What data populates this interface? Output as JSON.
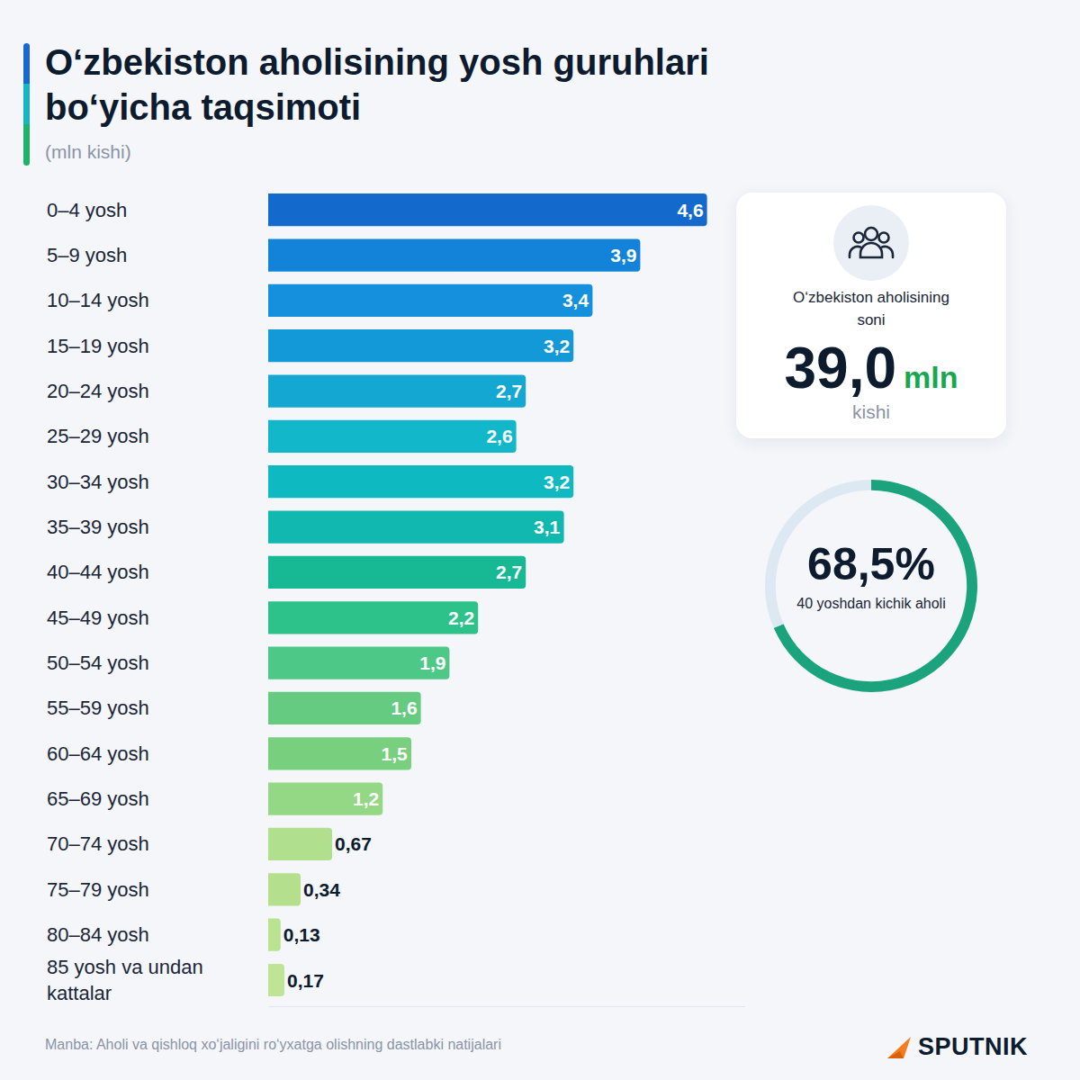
{
  "chart_data": {
    "type": "bar",
    "orientation": "horizontal",
    "title": "O‘zbekiston aholisining yosh guruhlari bo‘yicha taqsimoti",
    "subtitle": "(mln kishi)",
    "categories": [
      "0–4 yosh",
      "5–9 yosh",
      "10–14 yosh",
      "15–19 yosh",
      "20–24 yosh",
      "25–29 yosh",
      "30–34 yosh",
      "35–39 yosh",
      "40–44 yosh",
      "45–49 yosh",
      "50–54 yosh",
      "55–59 yosh",
      "60–64 yosh",
      "65–69 yosh",
      "70–74 yosh",
      "75–79 yosh",
      "80–84 yosh",
      "85 yosh va undan kattalar"
    ],
    "values": [
      4.6,
      3.9,
      3.4,
      3.2,
      2.7,
      2.6,
      3.2,
      3.1,
      2.7,
      2.2,
      1.9,
      1.6,
      1.5,
      1.2,
      0.67,
      0.34,
      0.13,
      0.17
    ],
    "value_labels": [
      "4,6",
      "3,9",
      "3,4",
      "3,2",
      "2,7",
      "2,6",
      "3,2",
      "3,1",
      "2,7",
      "2,2",
      "1,9",
      "1,6",
      "1,5",
      "1,2",
      "0,67",
      "0,34",
      "0,13",
      "0,17"
    ],
    "colors": [
      "#1469cc",
      "#1283d9",
      "#1490dc",
      "#1399d8",
      "#14a7d2",
      "#12b8ca",
      "#0fb9c2",
      "#10b8b0",
      "#16b994",
      "#2ec28b",
      "#4ec886",
      "#64cb80",
      "#78cf7e",
      "#94d784",
      "#b0df8d",
      "#b4e08e",
      "#b9e291",
      "#bfe495"
    ],
    "data_labels": true,
    "tick_labels": "y",
    "grid": false,
    "xlim": [
      0,
      5
    ]
  },
  "summary": {
    "label": "O‘zbekiston aholisining soni",
    "value": "39,0",
    "unit": "mln",
    "note": "kishi"
  },
  "donut": {
    "value": 68.5,
    "label": "68,5%",
    "caption": "40 yoshdan kichik aholi",
    "colors": [
      "#1ba37e",
      "#dce9f3"
    ]
  },
  "source": "Manba: Aholi va qishloq xo‘jaligini ro‘yxatga olishning dastlabki natijalari",
  "logo": "SPUTNIK"
}
